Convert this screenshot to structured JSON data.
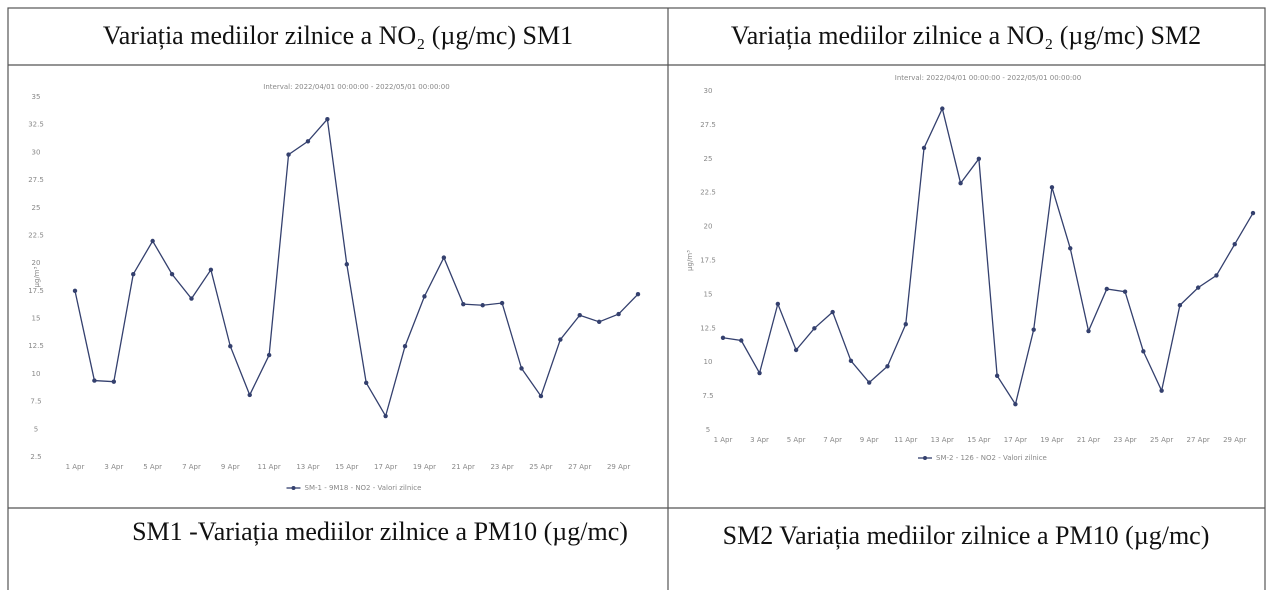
{
  "header": {
    "left": "Variația mediilor zilnice a NO₂ (µg/mc) SM1",
    "right": "Variația mediilor zilnice a NO₂ (µg/mc) SM2"
  },
  "chart_data": [
    {
      "type": "line",
      "title": "Interval: 2022/04/01 00:00:00 - 2022/05/01 00:00:00",
      "ylabel": "µg/m³",
      "categories": [
        "1 Apr",
        null,
        "3 Apr",
        null,
        "5 Apr",
        null,
        "7 Apr",
        null,
        "9 Apr",
        null,
        "11 Apr",
        null,
        "13 Apr",
        null,
        "15 Apr",
        null,
        "17 Apr",
        null,
        "19 Apr",
        null,
        "21 Apr",
        null,
        "23 Apr",
        null,
        "25 Apr",
        null,
        "27 Apr",
        null,
        "29 Apr",
        null
      ],
      "series": [
        {
          "name": "SM-1 - 9M18 - NO2 - Valori zilnice",
          "color": "#34406e",
          "values": [
            17.5,
            9.4,
            9.3,
            19,
            22,
            19,
            16.8,
            19.4,
            12.5,
            8.1,
            11.7,
            29.8,
            31,
            33,
            19.9,
            9.2,
            6.2,
            12.5,
            17,
            20.5,
            16.3,
            16.2,
            16.4,
            10.5,
            8,
            13.1,
            15.3,
            14.7,
            15.4,
            17.2
          ]
        }
      ],
      "ylim": [
        2.5,
        35
      ],
      "yticks": [
        2.5,
        5,
        7.5,
        10,
        12.5,
        15,
        17.5,
        20,
        22.5,
        25,
        27.5,
        30,
        32.5,
        35
      ],
      "legend": "bottom"
    },
    {
      "type": "line",
      "title": "Interval: 2022/04/01 00:00:00 - 2022/05/01 00:00:00",
      "ylabel": "µg/m³",
      "categories": [
        "1 Apr",
        null,
        "3 Apr",
        null,
        "5 Apr",
        null,
        "7 Apr",
        null,
        "9 Apr",
        null,
        "11 Apr",
        null,
        "13 Apr",
        null,
        "15 Apr",
        null,
        "17 Apr",
        null,
        "19 Apr",
        null,
        "21 Apr",
        null,
        "23 Apr",
        null,
        "25 Apr",
        null,
        "27 Apr",
        null,
        "29 Apr",
        null
      ],
      "series": [
        {
          "name": "SM-2 - 126 - NO2 - Valori zilnice",
          "color": "#34406e",
          "values": [
            11.8,
            11.6,
            9.2,
            14.3,
            10.9,
            12.5,
            13.7,
            10.1,
            8.5,
            9.7,
            12.8,
            25.8,
            28.7,
            23.2,
            25,
            9,
            6.9,
            12.4,
            22.9,
            18.4,
            12.3,
            15.4,
            15.2,
            10.8,
            7.9,
            14.2,
            15.5,
            16.4,
            18.7,
            21
          ]
        }
      ],
      "ylim": [
        5,
        30
      ],
      "yticks": [
        5,
        7.5,
        10,
        12.5,
        15,
        17.5,
        20,
        22.5,
        25,
        27.5,
        30
      ],
      "legend": "bottom"
    }
  ],
  "footer": {
    "left": "SM1 -Variația mediilor zilnice a PM10 (µg/mc)",
    "right": "SM2 Variația mediilor zilnice a PM10 (µg/mc)"
  }
}
